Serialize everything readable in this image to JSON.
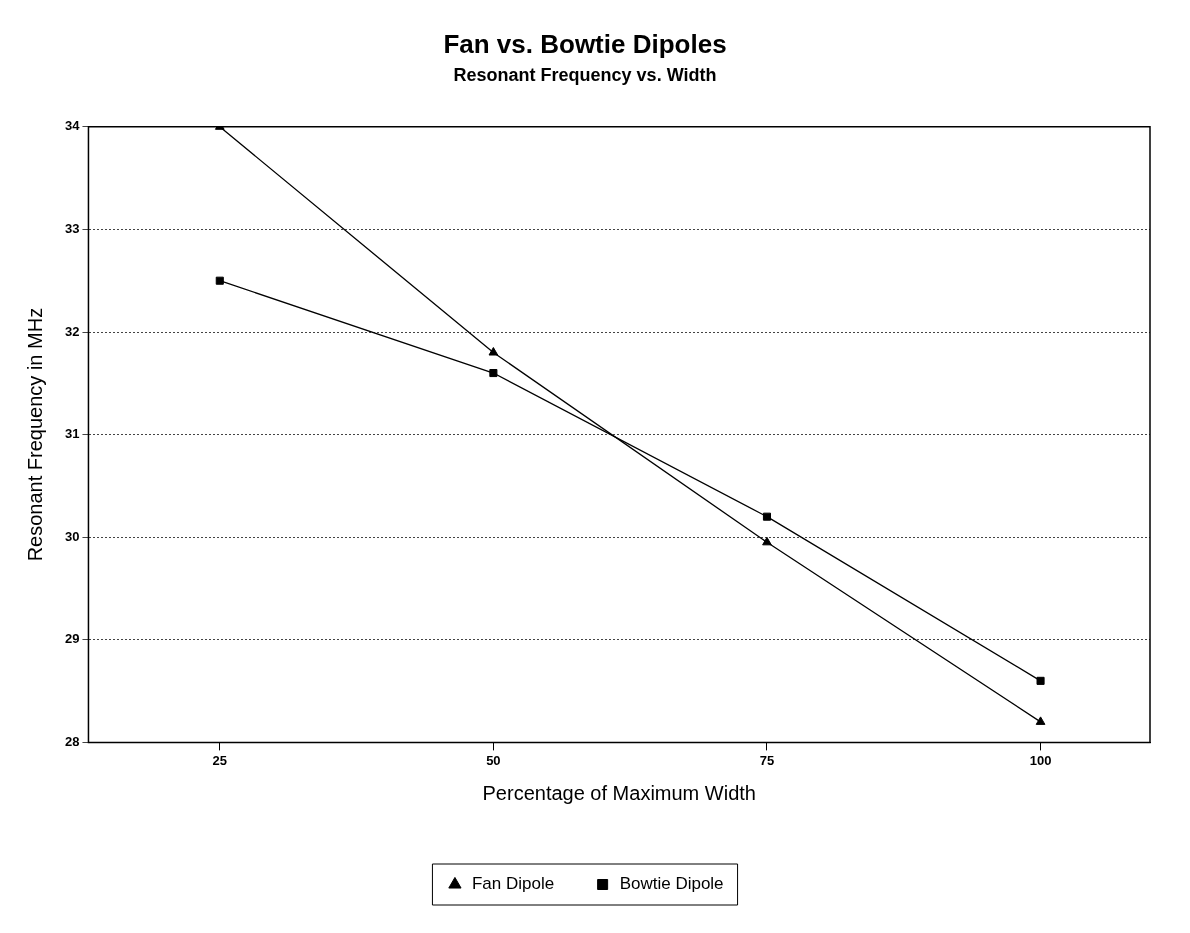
{
  "chart_data": {
    "type": "line",
    "title": "Fan vs. Bowtie Dipoles",
    "subtitle": "Resonant Frequency vs. Width",
    "xlabel": "Percentage of Maximum Width",
    "ylabel": "Resonant Frequency in MHz",
    "x": [
      25,
      50,
      75,
      100
    ],
    "xlim": [
      13,
      110
    ],
    "xticks": [
      25,
      50,
      75,
      100
    ],
    "ylim": [
      28,
      34
    ],
    "yticks": [
      28,
      29,
      30,
      31,
      32,
      33,
      34
    ],
    "series": [
      {
        "name": "Fan Dipole",
        "color": "#000000",
        "marker": "triangle",
        "values": [
          34,
          31.8,
          29.95,
          28.2
        ]
      },
      {
        "name": "Bowtie Dipole",
        "color": "#000000",
        "marker": "square",
        "values": [
          32.5,
          31.6,
          30.2,
          28.6
        ]
      }
    ],
    "grid": "y",
    "legend": "bottom",
    "line_style": "solid"
  }
}
